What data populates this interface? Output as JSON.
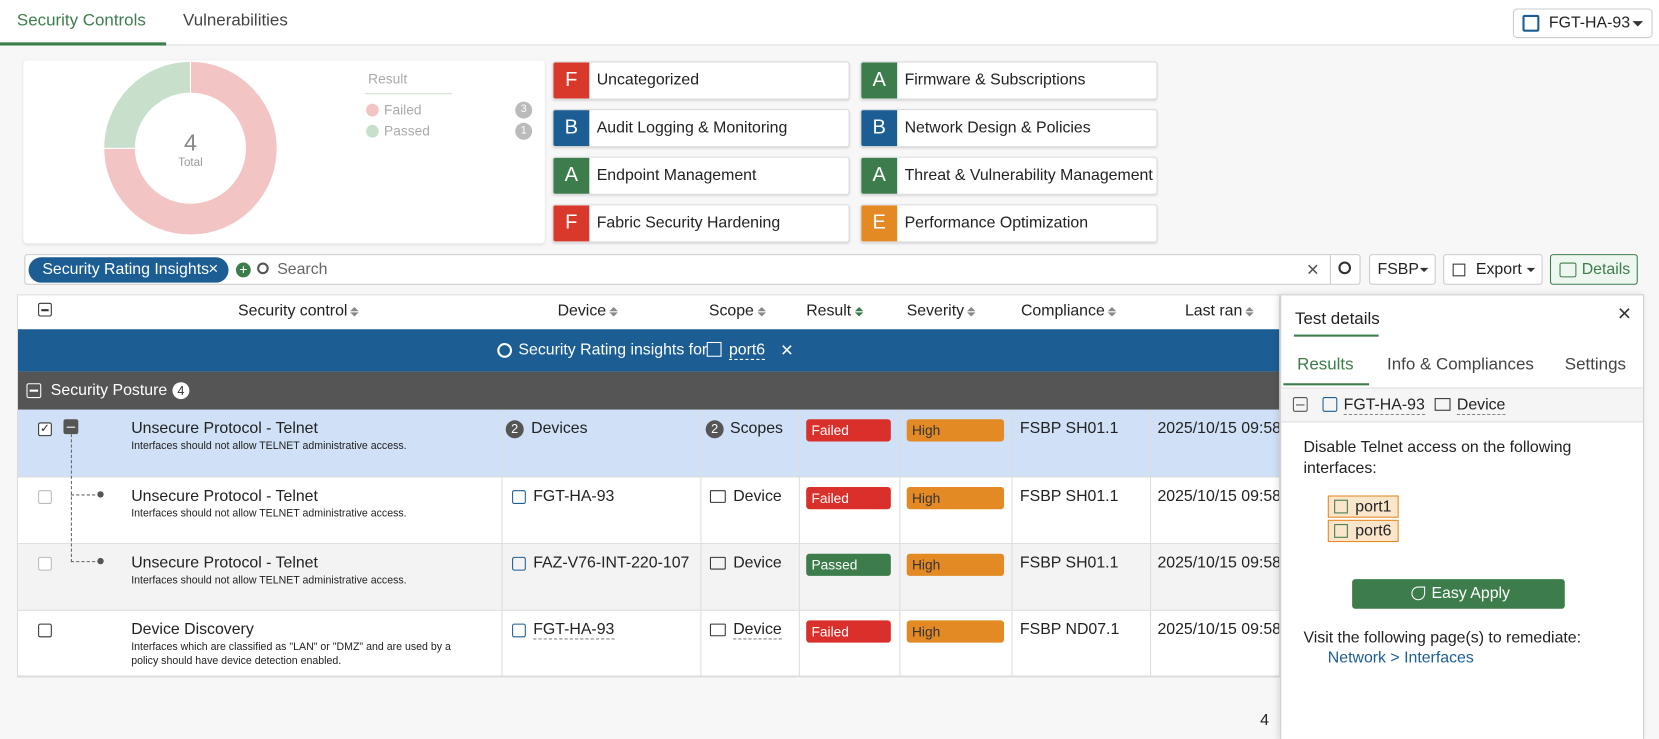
{
  "tabs": [
    "Security Controls",
    "Vulnerabilities"
  ],
  "device_selector": "FGT-HA-93",
  "summary": {
    "total": 4,
    "total_label": "Total",
    "legend_title": "Result",
    "results": [
      {
        "name": "Failed",
        "value": 3,
        "color": "#f2c4c4"
      },
      {
        "name": "Passed",
        "value": 1,
        "color": "#c8dfcc"
      }
    ]
  },
  "categories": [
    {
      "grade": "F",
      "name": "Uncategorized",
      "color": "#d9392b"
    },
    {
      "grade": "A",
      "name": "Firmware & Subscriptions",
      "color": "#3d7d4c"
    },
    {
      "grade": "B",
      "name": "Audit Logging & Monitoring",
      "color": "#1c5e94"
    },
    {
      "grade": "B",
      "name": "Network Design & Policies",
      "color": "#1c5e94"
    },
    {
      "grade": "A",
      "name": "Endpoint Management",
      "color": "#3d7d4c"
    },
    {
      "grade": "A",
      "name": "Threat & Vulnerability Management",
      "color": "#3d7d4c"
    },
    {
      "grade": "F",
      "name": "Fabric Security Hardening",
      "color": "#d9392b"
    },
    {
      "grade": "E",
      "name": "Performance Optimization",
      "color": "#e38a25"
    }
  ],
  "filter": {
    "chip": "Security Rating Insights",
    "search_placeholder": "Search",
    "framework": "FSBP",
    "export": "Export",
    "details": "Details"
  },
  "table": {
    "columns": [
      "Security control",
      "Device",
      "Scope",
      "Result",
      "Severity",
      "Compliance",
      "Last ran"
    ],
    "banner": {
      "text": "Security Rating insights for",
      "interface": "port6"
    },
    "group": {
      "name": "Security Posture",
      "count": 4
    },
    "status_colors": {
      "Failed": "#d9302c",
      "Passed": "#3d7d4c",
      "High": "#e38a25"
    },
    "rows": [
      {
        "title": "Unsecure Protocol - Telnet",
        "description": "Interfaces should not allow TELNET administrative access.",
        "device_count": 2,
        "device": "Devices",
        "scope_count": 2,
        "scope": "Scopes",
        "result": "Failed",
        "severity": "High",
        "compliance": "FSBP SH01.1",
        "last_ran": "2025/10/15 09:58"
      },
      {
        "title": "Unsecure Protocol - Telnet",
        "description": "Interfaces should not allow TELNET administrative access.",
        "device": "FGT-HA-93",
        "scope": "Device",
        "result": "Failed",
        "severity": "High",
        "compliance": "FSBP SH01.1",
        "last_ran": "2025/10/15 09:58"
      },
      {
        "title": "Unsecure Protocol - Telnet",
        "description": "Interfaces should not allow TELNET administrative access.",
        "device": "FAZ-V76-INT-220-107",
        "scope": "Device",
        "result": "Passed",
        "severity": "High",
        "compliance": "FSBP SH01.1",
        "last_ran": "2025/10/15 09:58"
      },
      {
        "title": "Device Discovery",
        "description": "Interfaces which are classified as \"LAN\" or \"DMZ\" and are used by a policy should have device detection enabled.",
        "device": "FGT-HA-93",
        "scope": "Device",
        "result": "Failed",
        "severity": "High",
        "compliance": "FSBP ND07.1",
        "last_ran": "2025/10/15 09:58"
      }
    ]
  },
  "footer_count": 4,
  "panel": {
    "title": "Test details",
    "tabs": [
      "Results",
      "Info & Compliances",
      "Settings"
    ],
    "device": "FGT-HA-93",
    "scope": "Device",
    "instruction": "Disable Telnet access on the following interfaces:",
    "interfaces": [
      "port1",
      "port6"
    ],
    "button": "Easy Apply",
    "remediate_text": "Visit the following page(s) to remediate:",
    "link": "Network > Interfaces"
  }
}
